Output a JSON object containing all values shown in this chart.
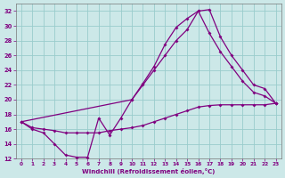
{
  "xlabel": "Windchill (Refroidissement éolien,°C)",
  "background_color": "#cce8e8",
  "grid_color": "#99cccc",
  "line_color": "#800080",
  "xlim": [
    -0.5,
    23.5
  ],
  "ylim": [
    12,
    33
  ],
  "yticks": [
    12,
    14,
    16,
    18,
    20,
    22,
    24,
    26,
    28,
    30,
    32
  ],
  "xticks": [
    0,
    1,
    2,
    3,
    4,
    5,
    6,
    7,
    8,
    9,
    10,
    11,
    12,
    13,
    14,
    15,
    16,
    17,
    18,
    19,
    20,
    21,
    22,
    23
  ],
  "curve1_x": [
    0,
    1,
    2,
    3,
    4,
    5,
    6,
    7,
    8,
    9,
    10,
    11,
    12,
    13,
    14,
    15,
    16,
    17,
    18,
    19,
    20,
    21,
    22,
    23
  ],
  "curve1_y": [
    17.0,
    16.0,
    15.5,
    14.0,
    12.5,
    12.2,
    12.2,
    17.5,
    15.2,
    17.5,
    20.0,
    22.2,
    24.5,
    27.5,
    29.8,
    31.0,
    32.0,
    32.2,
    28.5,
    26.0,
    24.0,
    22.0,
    21.5,
    19.5
  ],
  "curve2_x": [
    0,
    10,
    11,
    12,
    13,
    14,
    15,
    16,
    17,
    18,
    19,
    20,
    21,
    22,
    23
  ],
  "curve2_y": [
    17.0,
    20.0,
    22.0,
    24.0,
    26.0,
    28.0,
    29.5,
    32.0,
    29.0,
    26.5,
    24.5,
    22.5,
    21.0,
    20.5,
    19.5
  ],
  "curve3_x": [
    0,
    1,
    2,
    3,
    4,
    5,
    6,
    7,
    8,
    9,
    10,
    11,
    12,
    13,
    14,
    15,
    16,
    17,
    18,
    19,
    20,
    21,
    22,
    23
  ],
  "curve3_y": [
    17.0,
    16.2,
    16.0,
    15.8,
    15.5,
    15.5,
    15.5,
    15.5,
    15.8,
    16.0,
    16.2,
    16.5,
    17.0,
    17.5,
    18.0,
    18.5,
    19.0,
    19.2,
    19.3,
    19.3,
    19.3,
    19.3,
    19.3,
    19.5
  ]
}
